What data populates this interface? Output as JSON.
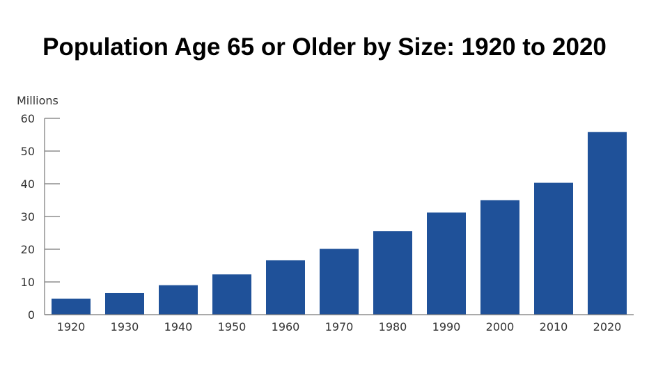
{
  "chart_data": {
    "type": "bar",
    "title": "Population Age 65 or Older by Size: 1920 to 2020",
    "ylabel": "Millions",
    "xlabel": "",
    "categories": [
      "1920",
      "1930",
      "1940",
      "1950",
      "1960",
      "1970",
      "1980",
      "1990",
      "2000",
      "2010",
      "2020"
    ],
    "values": [
      4.9,
      6.6,
      9.0,
      12.3,
      16.6,
      20.1,
      25.5,
      31.2,
      35.0,
      40.3,
      55.8
    ],
    "ylim": [
      0,
      60
    ],
    "yticks": [
      "0",
      "10",
      "20",
      "30",
      "40",
      "50",
      "60"
    ],
    "grid": false,
    "legend": "none",
    "colors": {
      "bar": "#1f5199",
      "axis": "#777777",
      "text": "#333333"
    }
  }
}
